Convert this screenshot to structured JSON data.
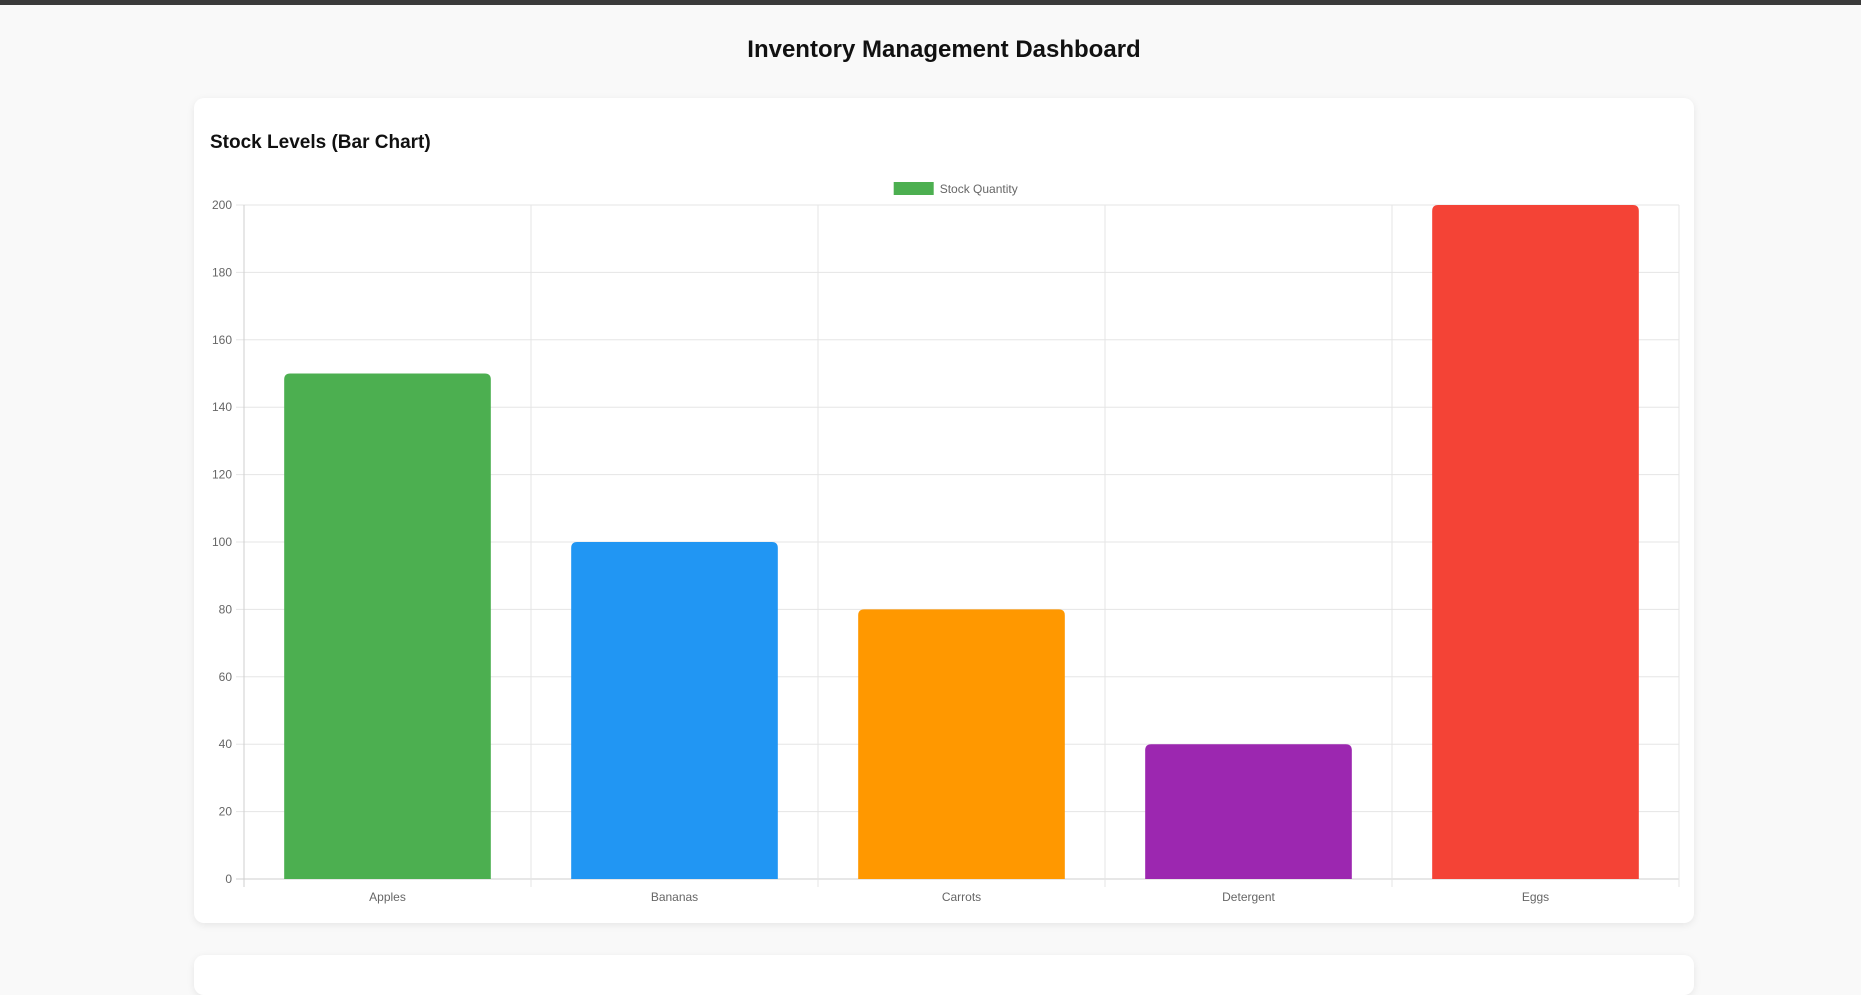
{
  "page": {
    "title": "Inventory Management Dashboard"
  },
  "card": {
    "title": "Stock Levels (Bar Chart)"
  },
  "chart_data": {
    "type": "bar",
    "categories": [
      "Apples",
      "Bananas",
      "Carrots",
      "Detergent",
      "Eggs"
    ],
    "series": [
      {
        "name": "Stock Quantity",
        "values": [
          150,
          100,
          80,
          40,
          200
        ]
      }
    ],
    "bar_colors": [
      "#4caf50",
      "#2196f3",
      "#ff9800",
      "#9c27b0",
      "#f44336"
    ],
    "legend_color": "#4caf50",
    "ylim": [
      0,
      200
    ],
    "yticks": [
      0,
      20,
      40,
      60,
      80,
      100,
      120,
      140,
      160,
      180,
      200
    ],
    "grid": true,
    "legend_position": "top-center"
  }
}
